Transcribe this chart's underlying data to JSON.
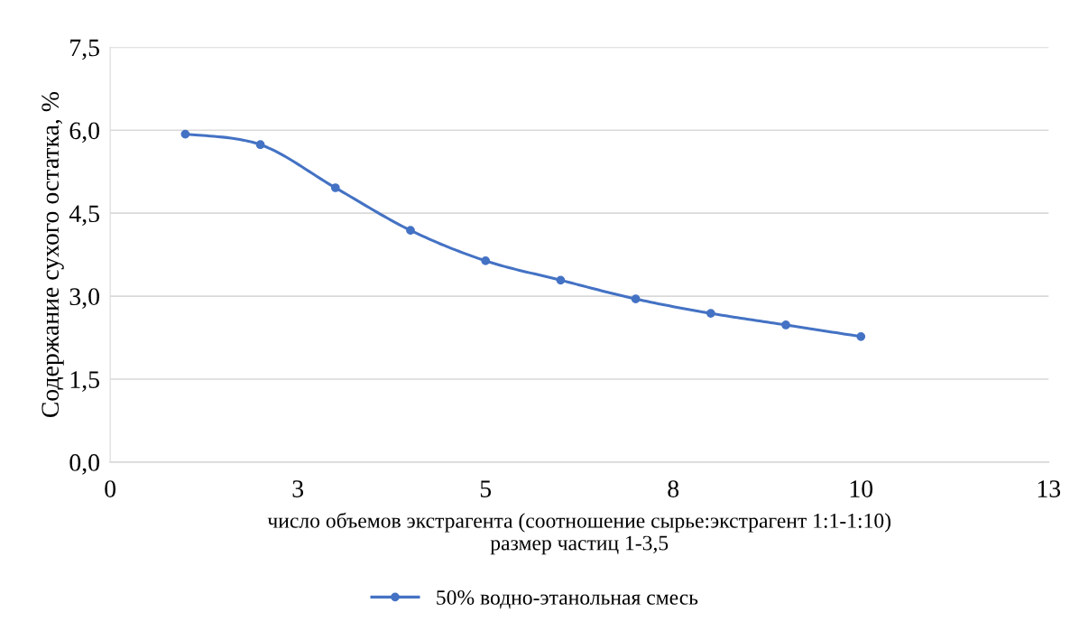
{
  "chart_data": {
    "type": "line",
    "xlabel": "число объемов экстрагента (соотношение сырье:экстрагент 1:1-1:10)\nразмер частиц 1-3,5",
    "ylabel": "Содержание сухого остатка, %",
    "x": [
      1,
      2,
      3,
      4,
      5,
      6,
      7,
      8,
      9,
      10
    ],
    "series": [
      {
        "name": "50% водно-этанольная смесь",
        "color": "#4472c4",
        "values": [
          5.93,
          5.74,
          4.96,
          4.19,
          3.64,
          3.29,
          2.95,
          2.69,
          2.48,
          2.27
        ]
      }
    ],
    "xlim": [
      0,
      12.5
    ],
    "xticks": [
      0,
      {
        "value": 2.5,
        "label": "3"
      },
      5,
      {
        "value": 7.5,
        "label": "8"
      },
      10,
      {
        "value": 12.5,
        "label": "13"
      }
    ],
    "ylim": [
      0,
      7.5
    ],
    "yticks": [
      {
        "value": 0,
        "label": "0,0"
      },
      {
        "value": 1.5,
        "label": "1,5"
      },
      {
        "value": 3,
        "label": "3,0"
      },
      {
        "value": 4.5,
        "label": "4,5"
      },
      {
        "value": 6,
        "label": "6,0"
      },
      {
        "value": 7.5,
        "label": "7,5"
      }
    ],
    "grid": "y",
    "legend": "bottom",
    "marker": "circle",
    "line_style": "solid"
  }
}
